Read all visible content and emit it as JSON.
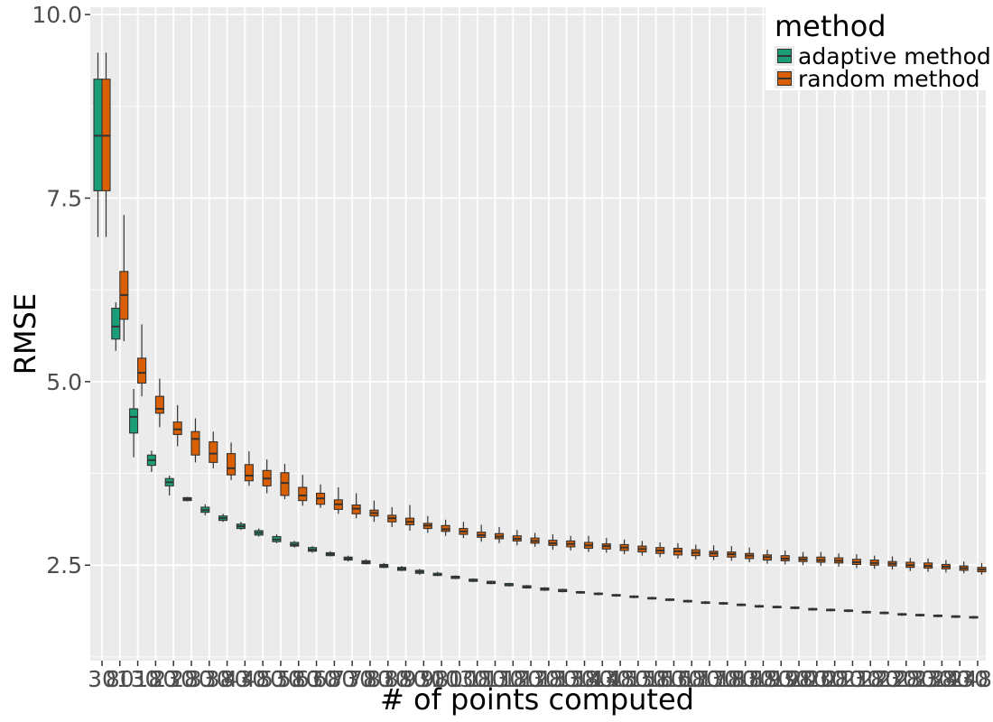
{
  "chart_data": {
    "type": "box",
    "xlabel": "# of points computed",
    "ylabel": "RMSE",
    "ylim": [
      1.2,
      10.1
    ],
    "yticks": [
      2.5,
      5.0,
      7.5,
      10.0
    ],
    "ytick_labels": [
      "2.5",
      "5.0",
      "7.5",
      "10.0"
    ],
    "grid": true,
    "legend": {
      "title": "method",
      "position": "top-right",
      "entries": [
        "adaptive method",
        "random method"
      ]
    },
    "colors": {
      "adaptive method": "#1b9e77",
      "random method": "#d95f02",
      "panel": "#ebebeb",
      "grid": "#ffffff"
    },
    "categories": [
      "30",
      "80",
      "130",
      "180",
      "230",
      "280",
      "330",
      "380",
      "430",
      "480",
      "530",
      "580",
      "630",
      "680",
      "730",
      "780",
      "830",
      "880",
      "930",
      "980",
      "1030",
      "1080",
      "1130",
      "1180",
      "1230",
      "1280",
      "1330",
      "1380",
      "1430",
      "1480",
      "1530",
      "1580",
      "1630",
      "1680",
      "1730",
      "1780",
      "1830",
      "1880",
      "1930",
      "1980",
      "2030",
      "2080",
      "2130",
      "2180",
      "2230",
      "2280",
      "2330",
      "2380",
      "2430",
      "2480"
    ],
    "series": [
      {
        "name": "adaptive method",
        "median": [
          8.35,
          5.75,
          4.52,
          3.93,
          3.63,
          3.4,
          3.25,
          3.14,
          3.03,
          2.94,
          2.85,
          2.78,
          2.71,
          2.65,
          2.59,
          2.54,
          2.49,
          2.45,
          2.41,
          2.37,
          2.33,
          2.29,
          2.26,
          2.23,
          2.2,
          2.17,
          2.15,
          2.13,
          2.11,
          2.09,
          2.07,
          2.05,
          2.03,
          2.01,
          1.99,
          1.98,
          1.96,
          1.94,
          1.93,
          1.92,
          1.9,
          1.89,
          1.88,
          1.86,
          1.85,
          1.83,
          1.82,
          1.81,
          1.8,
          1.79
        ],
        "q1": [
          7.6,
          5.58,
          4.3,
          3.86,
          3.58,
          3.38,
          3.22,
          3.11,
          3.0,
          2.91,
          2.82,
          2.76,
          2.69,
          2.63,
          2.57,
          2.52,
          2.47,
          2.43,
          2.39,
          2.36,
          2.32,
          2.28,
          2.25,
          2.22,
          2.19,
          2.16,
          2.14,
          2.12,
          2.1,
          2.08,
          2.06,
          2.04,
          2.02,
          2.0,
          1.98,
          1.97,
          1.95,
          1.93,
          1.92,
          1.91,
          1.89,
          1.88,
          1.87,
          1.85,
          1.84,
          1.82,
          1.81,
          1.8,
          1.79,
          1.78
        ],
        "q3": [
          9.12,
          6.0,
          4.63,
          4.0,
          3.68,
          3.42,
          3.29,
          3.17,
          3.06,
          2.97,
          2.89,
          2.81,
          2.74,
          2.67,
          2.61,
          2.56,
          2.51,
          2.47,
          2.43,
          2.39,
          2.35,
          2.31,
          2.28,
          2.25,
          2.22,
          2.19,
          2.17,
          2.14,
          2.12,
          2.1,
          2.08,
          2.06,
          2.04,
          2.02,
          2.0,
          1.99,
          1.97,
          1.95,
          1.94,
          1.93,
          1.91,
          1.9,
          1.89,
          1.87,
          1.86,
          1.84,
          1.83,
          1.82,
          1.81,
          1.8
        ],
        "min": [
          6.97,
          5.42,
          3.97,
          3.77,
          3.45,
          3.37,
          3.18,
          3.09,
          2.98,
          2.89,
          2.8,
          2.74,
          2.67,
          2.62,
          2.55,
          2.51,
          2.46,
          2.42,
          2.37,
          2.35,
          2.31,
          2.27,
          2.24,
          2.21,
          2.18,
          2.15,
          2.13,
          2.11,
          2.09,
          2.07,
          2.05,
          2.03,
          2.01,
          1.99,
          1.97,
          1.96,
          1.94,
          1.92,
          1.91,
          1.9,
          1.88,
          1.87,
          1.86,
          1.84,
          1.83,
          1.81,
          1.8,
          1.79,
          1.78,
          1.77
        ],
        "max": [
          9.48,
          6.08,
          4.9,
          4.06,
          3.72,
          3.43,
          3.33,
          3.2,
          3.09,
          3.0,
          2.92,
          2.83,
          2.76,
          2.69,
          2.63,
          2.58,
          2.53,
          2.49,
          2.45,
          2.41,
          2.36,
          2.32,
          2.29,
          2.26,
          2.23,
          2.2,
          2.18,
          2.15,
          2.13,
          2.11,
          2.09,
          2.07,
          2.05,
          2.03,
          2.01,
          2.0,
          1.98,
          1.96,
          1.95,
          1.94,
          1.92,
          1.91,
          1.9,
          1.88,
          1.87,
          1.85,
          1.84,
          1.83,
          1.82,
          1.81
        ]
      },
      {
        "name": "random method",
        "median": [
          8.35,
          6.18,
          5.12,
          4.63,
          4.35,
          4.22,
          4.02,
          3.82,
          3.72,
          3.68,
          3.62,
          3.45,
          3.41,
          3.33,
          3.27,
          3.21,
          3.14,
          3.09,
          3.04,
          2.99,
          2.96,
          2.91,
          2.89,
          2.86,
          2.83,
          2.8,
          2.79,
          2.77,
          2.76,
          2.74,
          2.72,
          2.7,
          2.69,
          2.67,
          2.66,
          2.65,
          2.63,
          2.61,
          2.59,
          2.58,
          2.57,
          2.56,
          2.54,
          2.53,
          2.52,
          2.5,
          2.49,
          2.48,
          2.46,
          2.44
        ],
        "q1": [
          7.6,
          5.85,
          4.98,
          4.57,
          4.28,
          4.0,
          3.9,
          3.73,
          3.65,
          3.58,
          3.45,
          3.38,
          3.33,
          3.26,
          3.2,
          3.17,
          3.09,
          3.05,
          3.0,
          2.96,
          2.92,
          2.88,
          2.86,
          2.83,
          2.8,
          2.77,
          2.75,
          2.73,
          2.72,
          2.7,
          2.68,
          2.66,
          2.64,
          2.63,
          2.62,
          2.61,
          2.59,
          2.57,
          2.56,
          2.55,
          2.54,
          2.53,
          2.51,
          2.5,
          2.49,
          2.47,
          2.46,
          2.45,
          2.43,
          2.41
        ],
        "q3": [
          9.12,
          6.5,
          5.32,
          4.8,
          4.45,
          4.32,
          4.18,
          4.02,
          3.87,
          3.79,
          3.76,
          3.56,
          3.48,
          3.39,
          3.32,
          3.25,
          3.18,
          3.14,
          3.07,
          3.04,
          3.0,
          2.95,
          2.93,
          2.9,
          2.87,
          2.84,
          2.83,
          2.81,
          2.79,
          2.78,
          2.76,
          2.74,
          2.73,
          2.71,
          2.69,
          2.68,
          2.66,
          2.64,
          2.63,
          2.61,
          2.61,
          2.6,
          2.58,
          2.57,
          2.55,
          2.54,
          2.53,
          2.51,
          2.49,
          2.47
        ],
        "min": [
          6.97,
          5.55,
          4.8,
          4.38,
          4.12,
          3.9,
          3.82,
          3.66,
          3.58,
          3.48,
          3.4,
          3.31,
          3.28,
          3.2,
          3.14,
          3.09,
          3.02,
          2.97,
          2.94,
          2.9,
          2.87,
          2.82,
          2.8,
          2.77,
          2.75,
          2.71,
          2.7,
          2.68,
          2.67,
          2.65,
          2.63,
          2.61,
          2.59,
          2.58,
          2.57,
          2.56,
          2.54,
          2.52,
          2.51,
          2.5,
          2.49,
          2.48,
          2.46,
          2.45,
          2.44,
          2.42,
          2.41,
          2.4,
          2.39,
          2.37
        ],
        "max": [
          9.48,
          7.27,
          5.78,
          5.04,
          4.68,
          4.5,
          4.32,
          4.17,
          4.05,
          3.94,
          3.88,
          3.73,
          3.6,
          3.56,
          3.48,
          3.38,
          3.29,
          3.32,
          3.17,
          3.12,
          3.09,
          3.05,
          3.02,
          2.98,
          2.94,
          2.92,
          2.9,
          2.9,
          2.87,
          2.85,
          2.83,
          2.81,
          2.8,
          2.78,
          2.77,
          2.76,
          2.74,
          2.71,
          2.7,
          2.68,
          2.68,
          2.66,
          2.65,
          2.63,
          2.62,
          2.6,
          2.59,
          2.57,
          2.55,
          2.53
        ]
      }
    ]
  }
}
